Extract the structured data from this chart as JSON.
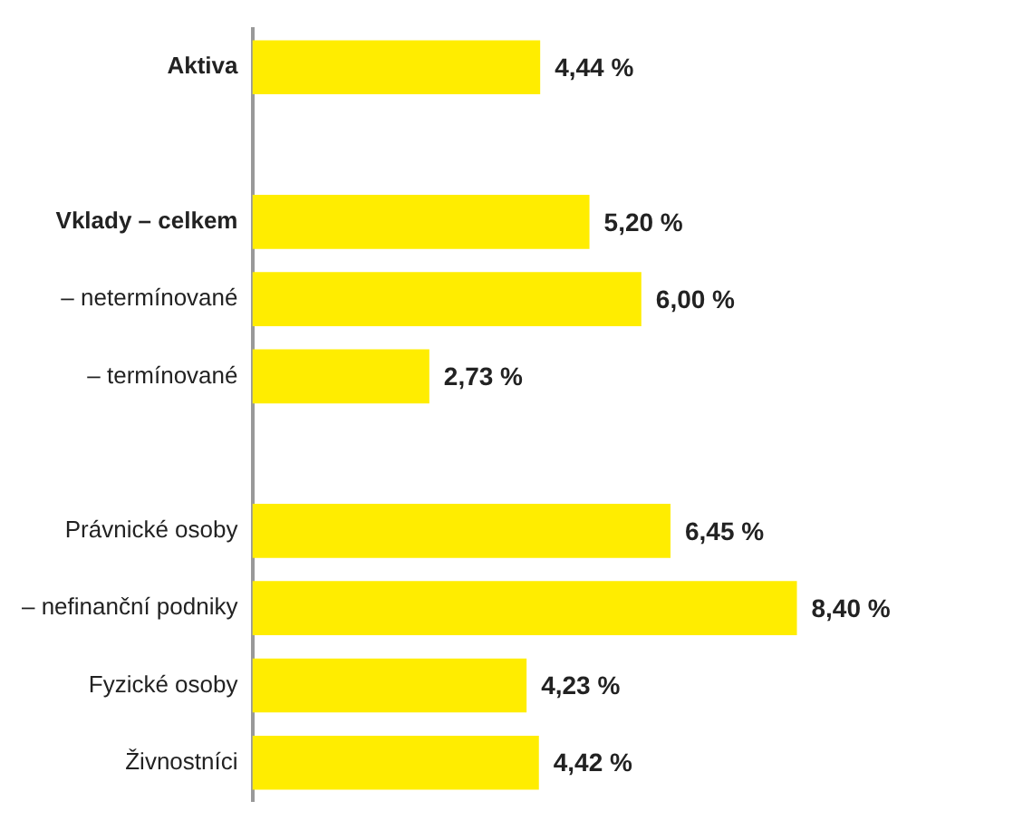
{
  "chart_data": {
    "type": "bar",
    "orientation": "horizontal",
    "categories": [
      "Aktiva",
      null,
      "Vklady – celkem",
      "– netermínované",
      "– termínované",
      null,
      "Právnické osoby",
      "– nefinanční podniky",
      "Fyzické osoby",
      "Živnostníci"
    ],
    "values": [
      4.44,
      null,
      5.2,
      6.0,
      2.73,
      null,
      6.45,
      8.4,
      4.23,
      4.42
    ],
    "value_labels": [
      "4,44 %",
      null,
      "5,20 %",
      "6,00 %",
      "2,73 %",
      null,
      "6,45 %",
      "8,40 %",
      "4,23 %",
      "4,42 %"
    ],
    "color": "#ffed00",
    "grid": false,
    "legend": false
  }
}
